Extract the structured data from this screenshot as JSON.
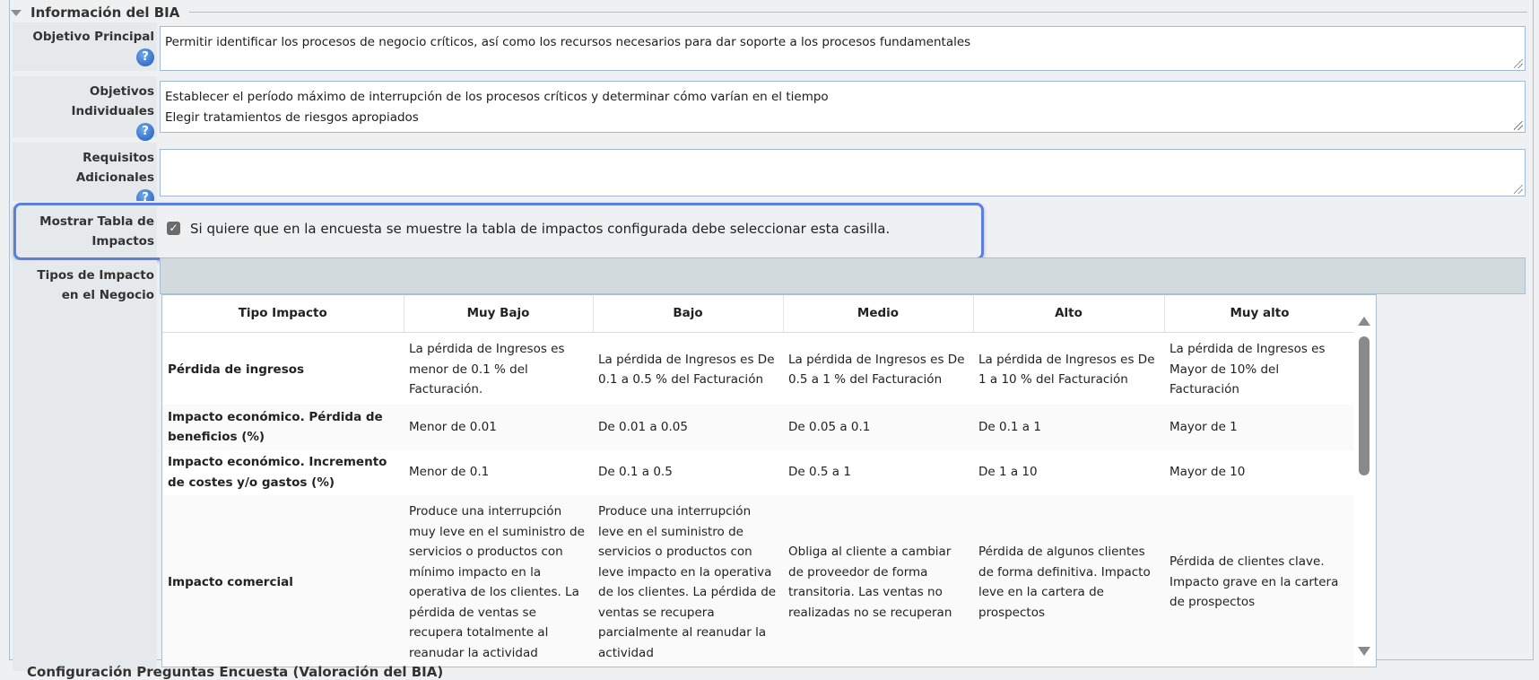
{
  "section": {
    "title": "Información del BIA",
    "collapse_icon": "triangle-down-icon"
  },
  "fields": {
    "objetivo_principal": {
      "label": "Objetivo Principal",
      "value": "Permitir identificar los procesos de negocio críticos, así como los recursos necesarios para dar soporte a los procesos fundamentales"
    },
    "objetivos_individuales": {
      "label": "Objetivos Individuales",
      "value": "Establecer el período máximo de interrupción de los procesos críticos y determinar cómo varían en el tiempo\nElegir tratamientos de riesgos apropiados"
    },
    "requisitos_adicionales": {
      "label": "Requisitos Adicionales",
      "value": ""
    },
    "mostrar_tabla": {
      "label": "Mostrar Tabla de Impactos",
      "checked": true,
      "text": "Si quiere que en la encuesta se muestre la tabla de impactos configurada debe seleccionar esta casilla."
    },
    "tipos_impacto": {
      "label": "Tipos de Impacto en el Negocio"
    }
  },
  "help_icon": "?",
  "table": {
    "headers": [
      "Tipo Impacto",
      "Muy Bajo",
      "Bajo",
      "Medio",
      "Alto",
      "Muy alto"
    ],
    "rows": [
      [
        "Pérdida de ingresos",
        "La pérdida de Ingresos es menor de 0.1 % del Facturación.",
        "La pérdida de Ingresos es De 0.1 a 0.5 % del Facturación",
        "La pérdida de Ingresos es De 0.5 a 1 % del Facturación",
        "La pérdida de Ingresos es De 1 a 10 % del Facturación",
        "La pérdida de Ingresos es Mayor de 10% del Facturación"
      ],
      [
        "Impacto económico. Pérdida de beneficios (%)",
        "Menor de 0.01",
        "De 0.01 a 0.05",
        "De 0.05 a 0.1",
        "De 0.1 a 1",
        "Mayor de 1"
      ],
      [
        "Impacto económico. Incremento de costes y/o gastos (%)",
        "Menor de 0.1",
        "De 0.1 a 0.5",
        "De 0.5 a 1",
        "De 1 a 10",
        "Mayor de 10"
      ],
      [
        "Impacto comercial",
        "Produce una interrupción muy leve en el suministro de servicios o productos con mínimo impacto en la operativa de los clientes. La pérdida de ventas se recupera totalmente al reanudar la actividad",
        "Produce una interrupción leve en el suministro de servicios o productos con leve impacto en la operativa de los clientes. La pérdida de ventas se recupera parcialmente al reanudar la actividad",
        "Obliga al cliente a cambiar de proveedor de forma transitoria. Las ventas no realizadas no se recuperan",
        "Pérdida de algunos clientes de forma definitiva. Impacto leve en la cartera de prospectos",
        "Pérdida de clientes clave. Impacto grave en la cartera de prospectos"
      ]
    ]
  },
  "next_section": {
    "title": "Configuración Preguntas Encuesta (Valoración del BIA)"
  },
  "colors": {
    "highlight": "#5b7fe0",
    "border": "#a9bfd6",
    "label_bg": "#e6e9eb"
  }
}
